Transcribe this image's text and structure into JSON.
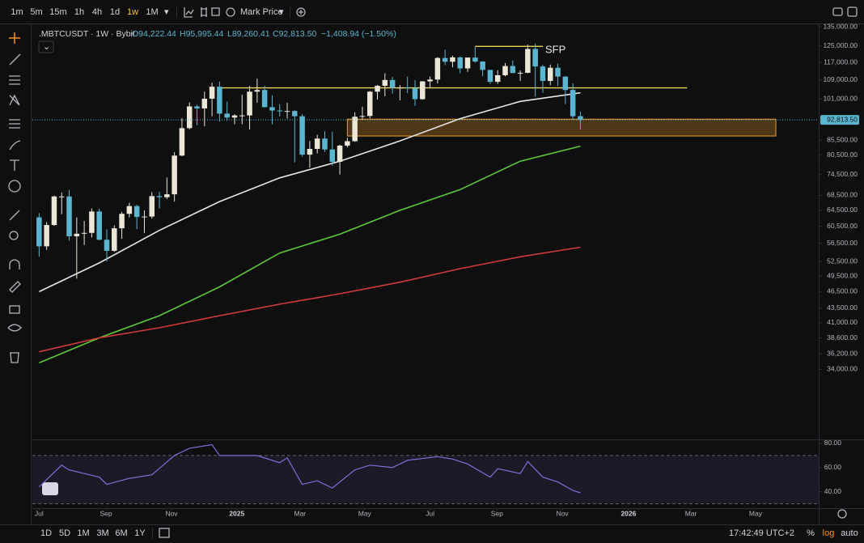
{
  "toolbar": {
    "intervals": [
      "1m",
      "5m",
      "15m",
      "1h",
      "4h",
      "1d",
      "1w",
      "1M"
    ],
    "active_interval": "1w",
    "price_source": "Mark Price"
  },
  "chart_data": [
    {
      "type": "candlestick",
      "title": ".MBTCUSDT · 1W · Bybit",
      "ohlc_labels": [
        "O94,222.44",
        "H95,995.44",
        "L89,260.41",
        "C92,813.50"
      ],
      "change_label": "−1,408.94 (−1.50%)",
      "open": [
        62700,
        55800,
        60800,
        68200,
        68200,
        58100,
        58700,
        58900,
        64200,
        57300,
        54800,
        60000,
        63600,
        65600,
        62800,
        62900,
        68300,
        68000,
        68800,
        80400,
        89800,
        98000,
        97200,
        101100,
        106100,
        95200,
        93700,
        94500,
        94500,
        104000,
        104700,
        97700,
        96400,
        96100,
        96200,
        94200,
        80700,
        82600,
        86100,
        82400,
        78400,
        83700,
        85200,
        94000,
        94300,
        104000,
        106500,
        109000,
        105600,
        105700,
        105500,
        100900,
        108400,
        109200,
        119100,
        117300,
        119400,
        114200,
        119300,
        117400,
        113500,
        108200,
        111100,
        115300,
        112100,
        112200,
        123500,
        115100,
        108600,
        114500,
        110500,
        104700,
        94222.44
      ],
      "high": [
        63800,
        61500,
        68400,
        69300,
        70000,
        62700,
        61800,
        65000,
        64900,
        59800,
        60700,
        64100,
        66500,
        66000,
        64500,
        69400,
        69500,
        73600,
        81500,
        93400,
        99600,
        98700,
        104000,
        107800,
        108300,
        99900,
        95000,
        102700,
        106400,
        109600,
        106500,
        102500,
        98800,
        99500,
        96500,
        95000,
        85300,
        87400,
        88700,
        88500,
        84000,
        86400,
        95700,
        97900,
        104300,
        106800,
        112000,
        110400,
        106800,
        110500,
        109000,
        108500,
        110500,
        119500,
        123200,
        120200,
        119800,
        119300,
        124500,
        117600,
        113600,
        113400,
        116700,
        117900,
        113300,
        125700,
        126200,
        115900,
        116000,
        116400,
        110700,
        107500,
        95995.44
      ],
      "low": [
        53500,
        55000,
        60600,
        63500,
        57100,
        49000,
        56100,
        57800,
        57200,
        52500,
        54600,
        57500,
        62700,
        59800,
        58900,
        62400,
        65000,
        67500,
        66800,
        80200,
        89400,
        90800,
        90500,
        94200,
        92200,
        92500,
        91200,
        91200,
        89300,
        99500,
        97700,
        91200,
        94100,
        93300,
        78200,
        80000,
        76600,
        81100,
        81600,
        77200,
        74500,
        83100,
        85000,
        92800,
        93400,
        100700,
        102100,
        103100,
        100400,
        103400,
        98200,
        100700,
        105300,
        107500,
        115700,
        114700,
        112000,
        112600,
        116800,
        110600,
        107300,
        107300,
        110600,
        112000,
        108600,
        112000,
        102000,
        103500,
        106700,
        106400,
        98900,
        93000,
        89260.41
      ],
      "close": [
        55800,
        60800,
        68200,
        68200,
        58100,
        58700,
        58900,
        64200,
        57300,
        54800,
        60000,
        63600,
        65600,
        62800,
        62900,
        68300,
        68000,
        68800,
        80400,
        89800,
        98000,
        97200,
        101100,
        106100,
        95200,
        93700,
        94500,
        94500,
        104000,
        104700,
        97700,
        96400,
        96100,
        96200,
        94200,
        80700,
        82600,
        86100,
        82400,
        78400,
        83700,
        85200,
        94000,
        94300,
        104000,
        106500,
        109000,
        105600,
        105700,
        105500,
        100900,
        108400,
        109200,
        119100,
        117300,
        119400,
        114200,
        119300,
        117400,
        113500,
        108200,
        111100,
        115300,
        112100,
        112200,
        123500,
        115100,
        108600,
        114500,
        110500,
        104700,
        94200,
        92813.5
      ],
      "up_color": "#ece6d6",
      "down_color": "#5bb5cf",
      "xlim": [
        -0.9,
        103.7
      ],
      "xticks": [
        {
          "value": 0,
          "label": "Jul"
        },
        {
          "value": 8.9,
          "label": "Sep"
        },
        {
          "value": 17.6,
          "label": "Nov"
        },
        {
          "value": 26.3,
          "label": "2025"
        },
        {
          "value": 34.7,
          "label": "Mar"
        },
        {
          "value": 43.3,
          "label": "May"
        },
        {
          "value": 52,
          "label": "Jul"
        },
        {
          "value": 60.9,
          "label": "Sep"
        },
        {
          "value": 69.6,
          "label": "Nov"
        },
        {
          "value": 78.4,
          "label": "2026"
        },
        {
          "value": 86.7,
          "label": "Mar"
        },
        {
          "value": 95.3,
          "label": "May"
        }
      ],
      "ylim": [
        25900,
        136400
      ],
      "log_scale": true,
      "yticks": [
        {
          "value": 135000,
          "label": "135,000.00"
        },
        {
          "value": 125000,
          "label": "125,000.00"
        },
        {
          "value": 117000,
          "label": "117,000.00"
        },
        {
          "value": 109000,
          "label": "109,000.00"
        },
        {
          "value": 101000,
          "label": "101,000.00"
        },
        {
          "value": 85500,
          "label": "85,500.00"
        },
        {
          "value": 80500,
          "label": "80,500.00"
        },
        {
          "value": 74500,
          "label": "74,500.00"
        },
        {
          "value": 68500,
          "label": "68,500.00"
        },
        {
          "value": 64500,
          "label": "64,500.00"
        },
        {
          "value": 60500,
          "label": "60,500.00"
        },
        {
          "value": 56500,
          "label": "56,500.00"
        },
        {
          "value": 52500,
          "label": "52,500.00"
        },
        {
          "value": 49500,
          "label": "49,500.00"
        },
        {
          "value": 46500,
          "label": "46,500.00"
        },
        {
          "value": 43500,
          "label": "43,500.00"
        },
        {
          "value": 41000,
          "label": "41,000.00"
        },
        {
          "value": 38600,
          "label": "38,600.00"
        },
        {
          "value": 36200,
          "label": "36,200.00"
        },
        {
          "value": 34000,
          "label": "34,000.00"
        }
      ],
      "last_price": {
        "value": 92813.5,
        "label": "92,813.50"
      },
      "moving_averages": [
        {
          "color": "#e6e6e6",
          "x": [
            0,
            8,
            16,
            24,
            32,
            40,
            48,
            56,
            64,
            72
          ],
          "values": [
            46500,
            52200,
            59500,
            66800,
            73500,
            78600,
            85300,
            93300,
            100000,
            103500
          ]
        },
        {
          "color": "#5cc93a",
          "x": [
            0,
            8,
            16,
            24,
            32,
            40,
            48,
            56,
            64,
            72
          ],
          "values": [
            34900,
            38600,
            42200,
            47400,
            54300,
            58600,
            64500,
            70100,
            78600,
            83500
          ]
        },
        {
          "color": "#d23b3b",
          "x": [
            0,
            8,
            16,
            24,
            32,
            40,
            48,
            56,
            64,
            72
          ],
          "values": [
            36500,
            38600,
            40200,
            42200,
            44200,
            46100,
            48300,
            51000,
            53500,
            55600
          ]
        }
      ],
      "levels": [
        {
          "value": 105600,
          "x": [
            24.1,
            86.2
          ],
          "color": "#e9d65a"
        },
        {
          "value": 124800,
          "x": [
            58,
            67
          ],
          "color": "#e9d65a",
          "label": "SFP"
        }
      ],
      "zone": {
        "x": [
          41,
          98
        ],
        "y": [
          87000,
          93100
        ],
        "color": "#f0a030"
      }
    },
    {
      "type": "line",
      "color": "#7e6fd8",
      "x": [
        0,
        3,
        4,
        8,
        9,
        12,
        15,
        18,
        20,
        23,
        24,
        27,
        29,
        32,
        33,
        35,
        37,
        39,
        42,
        44,
        47,
        49,
        53,
        55,
        57,
        60,
        61,
        64,
        65,
        67,
        69,
        71,
        72
      ],
      "values": [
        44,
        62,
        58,
        52,
        46,
        51,
        54,
        70,
        76,
        79,
        70,
        70,
        70,
        64,
        68,
        46,
        49,
        43,
        58,
        62,
        60,
        66,
        69,
        67,
        63,
        52,
        59,
        55,
        65,
        52,
        48,
        41,
        39
      ],
      "ylim": [
        26.9,
        82
      ],
      "yticks": [
        {
          "value": 80,
          "label": "80.00"
        },
        {
          "value": 60,
          "label": "60.00"
        },
        {
          "value": 40,
          "label": "40.00"
        }
      ],
      "bands": [
        30,
        70
      ]
    }
  ],
  "bottom_bar": {
    "ranges": [
      "1D",
      "5D",
      "1M",
      "3M",
      "6M",
      "1Y"
    ],
    "clock": "17:42:49 UTC+2",
    "percent": "%",
    "log": "log",
    "auto": "auto"
  }
}
